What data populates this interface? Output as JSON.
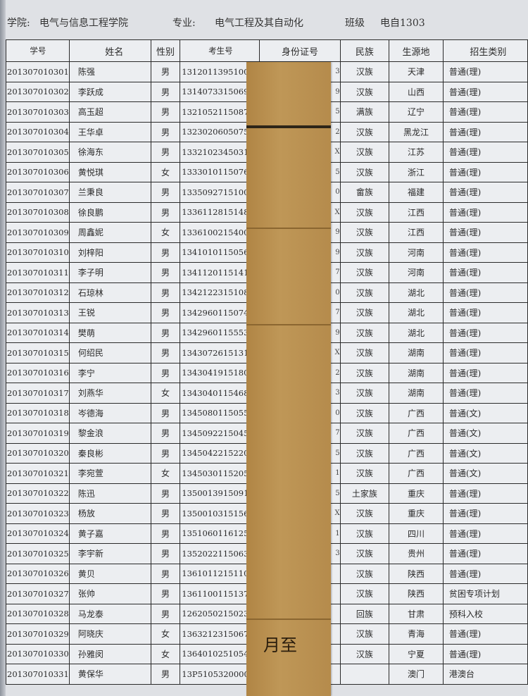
{
  "header": {
    "college_label": "学院:",
    "college": "电气与信息工程学院",
    "major_label": "专业:",
    "major": "电气工程及其自动化",
    "class_label": "班级",
    "class": "电自1303"
  },
  "columns": [
    "学号",
    "姓名",
    "性别",
    "考生号",
    "身份证号",
    "民族",
    "生源地",
    "招生类别"
  ],
  "rows": [
    [
      "201307010301",
      "陈强",
      "男",
      "13120113951009",
      "3",
      "汉族",
      "天津",
      "普通(理)"
    ],
    [
      "201307010302",
      "李跃成",
      "男",
      "13140733150694",
      "9",
      "汉族",
      "山西",
      "普通(理)"
    ],
    [
      "201307010303",
      "高玉超",
      "男",
      "13210521150872",
      "5",
      "满族",
      "辽宁",
      "普通(理)"
    ],
    [
      "201307010304",
      "王华卓",
      "男",
      "13230206050756",
      "2",
      "汉族",
      "黑龙江",
      "普通(理)"
    ],
    [
      "201307010305",
      "徐海东",
      "男",
      "13321023450311",
      "X",
      "汉族",
      "江苏",
      "普通(理)"
    ],
    [
      "201307010306",
      "黄悦琪",
      "女",
      "13330101150769",
      "5",
      "汉族",
      "浙江",
      "普通(理)"
    ],
    [
      "201307010307",
      "兰秉良",
      "男",
      "13350927151005",
      "0",
      "畲族",
      "福建",
      "普通(理)"
    ],
    [
      "201307010308",
      "徐良鹏",
      "男",
      "13361128151486",
      "X",
      "汉族",
      "江西",
      "普通(理)"
    ],
    [
      "201307010309",
      "周鑫妮",
      "女",
      "13361002154006",
      "9",
      "汉族",
      "江西",
      "普通(理)"
    ],
    [
      "201307010310",
      "刘梓阳",
      "男",
      "13410101150567",
      "9",
      "汉族",
      "河南",
      "普通(理)"
    ],
    [
      "201307010311",
      "李子明",
      "男",
      "13411201151410",
      "7",
      "汉族",
      "河南",
      "普通(理)"
    ],
    [
      "201307010312",
      "石琼林",
      "男",
      "13421223151081",
      "0",
      "汉族",
      "湖北",
      "普通(理)"
    ],
    [
      "201307010313",
      "王锐",
      "男",
      "13429601150745",
      "7",
      "汉族",
      "湖北",
      "普通(理)"
    ],
    [
      "201307010314",
      "樊萌",
      "男",
      "13429601155537",
      "9",
      "汉族",
      "湖北",
      "普通(理)"
    ],
    [
      "201307010315",
      "何绍民",
      "男",
      "13430726151315",
      "X",
      "汉族",
      "湖南",
      "普通(理)"
    ],
    [
      "201307010316",
      "李宁",
      "男",
      "13430419151806",
      "2",
      "汉族",
      "湖南",
      "普通(理)"
    ],
    [
      "201307010317",
      "刘燕华",
      "女",
      "13430401154682",
      "3",
      "汉族",
      "湖南",
      "普通(理)"
    ],
    [
      "201307010318",
      "岑德海",
      "男",
      "13450801150559",
      "0",
      "汉族",
      "广西",
      "普通(文)"
    ],
    [
      "201307010319",
      "黎金浪",
      "男",
      "13450922150454",
      "7",
      "汉族",
      "广西",
      "普通(文)"
    ],
    [
      "201307010320",
      "秦良彬",
      "男",
      "13450422152203",
      "5",
      "汉族",
      "广西",
      "普通(文)"
    ],
    [
      "201307010321",
      "李宛萱",
      "女",
      "13450301152054",
      "1",
      "汉族",
      "广西",
      "普通(文)"
    ],
    [
      "201307010322",
      "陈迅",
      "男",
      "13500139150913",
      "5",
      "土家族",
      "重庆",
      "普通(理)"
    ],
    [
      "201307010323",
      "杨放",
      "男",
      "13500103151564",
      "X",
      "汉族",
      "重庆",
      "普通(理)"
    ],
    [
      "201307010324",
      "黄子嘉",
      "男",
      "13510601161259",
      "1",
      "汉族",
      "四川",
      "普通(理)"
    ],
    [
      "201307010325",
      "李宇新",
      "男",
      "13520221150639",
      "3",
      "汉族",
      "贵州",
      "普通(理)"
    ],
    [
      "201307010326",
      "黄贝",
      "男",
      "13610112151109",
      "",
      "汉族",
      "陕西",
      "普通(理)"
    ],
    [
      "201307010327",
      "张帅",
      "男",
      "13611001151370",
      "",
      "汉族",
      "陕西",
      "贫困专项计划"
    ],
    [
      "201307010328",
      "马龙泰",
      "男",
      "12620502150239",
      "",
      "回族",
      "甘肃",
      "预科入校"
    ],
    [
      "201307010329",
      "阿晓庆",
      "女",
      "13632123150678",
      "",
      "汉族",
      "青海",
      "普通(理)"
    ],
    [
      "201307010330",
      "孙雅闵",
      "女",
      "13640102510542",
      "",
      "汉族",
      "宁夏",
      "普通(理)"
    ],
    [
      "201307010331",
      "黄保华",
      "男",
      "13P510532000004",
      "",
      "",
      "澳门",
      "港澳台"
    ]
  ],
  "tape": {
    "text": "月至",
    "color": "#bb9150"
  }
}
